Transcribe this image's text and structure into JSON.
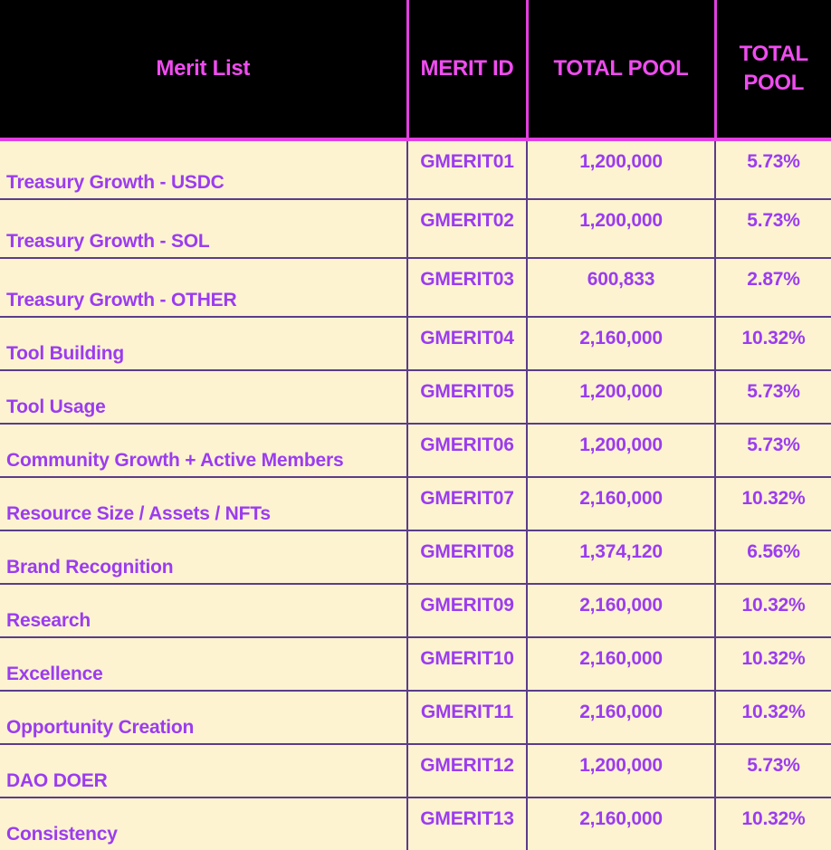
{
  "table": {
    "headers": [
      "Merit List",
      "MERIT ID",
      "TOTAL POOL",
      "TOTAL POOL"
    ],
    "rows": [
      {
        "name": "Treasury Growth - USDC",
        "id": "GMERIT01",
        "pool": "1,200,000",
        "pct": "5.73%"
      },
      {
        "name": "Treasury Growth - SOL",
        "id": "GMERIT02",
        "pool": "1,200,000",
        "pct": "5.73%"
      },
      {
        "name": "Treasury Growth - OTHER",
        "id": "GMERIT03",
        "pool": "600,833",
        "pct": "2.87%"
      },
      {
        "name": "Tool Building",
        "id": "GMERIT04",
        "pool": "2,160,000",
        "pct": "10.32%"
      },
      {
        "name": "Tool Usage",
        "id": "GMERIT05",
        "pool": "1,200,000",
        "pct": "5.73%"
      },
      {
        "name": "Community Growth + Active Members",
        "id": "GMERIT06",
        "pool": "1,200,000",
        "pct": "5.73%"
      },
      {
        "name": "Resource Size / Assets / NFTs",
        "id": "GMERIT07",
        "pool": "2,160,000",
        "pct": "10.32%"
      },
      {
        "name": "Brand Recognition",
        "id": "GMERIT08",
        "pool": "1,374,120",
        "pct": "6.56%"
      },
      {
        "name": "Research",
        "id": "GMERIT09",
        "pool": "2,160,000",
        "pct": "10.32%"
      },
      {
        "name": "Excellence",
        "id": "GMERIT10",
        "pool": "2,160,000",
        "pct": "10.32%"
      },
      {
        "name": "Opportunity Creation",
        "id": "GMERIT11",
        "pool": "2,160,000",
        "pct": "10.32%"
      },
      {
        "name": "DAO DOER",
        "id": "GMERIT12",
        "pool": "1,200,000",
        "pct": "5.73%"
      },
      {
        "name": "Consistency",
        "id": "GMERIT13",
        "pool": "2,160,000",
        "pct": "10.32%"
      }
    ]
  },
  "colors": {
    "header_bg": "#000000",
    "header_text": "#f04cf0",
    "cell_bg": "#fdf3d1",
    "cell_text": "#9b3cf0",
    "grid": "#5b3c8a"
  }
}
